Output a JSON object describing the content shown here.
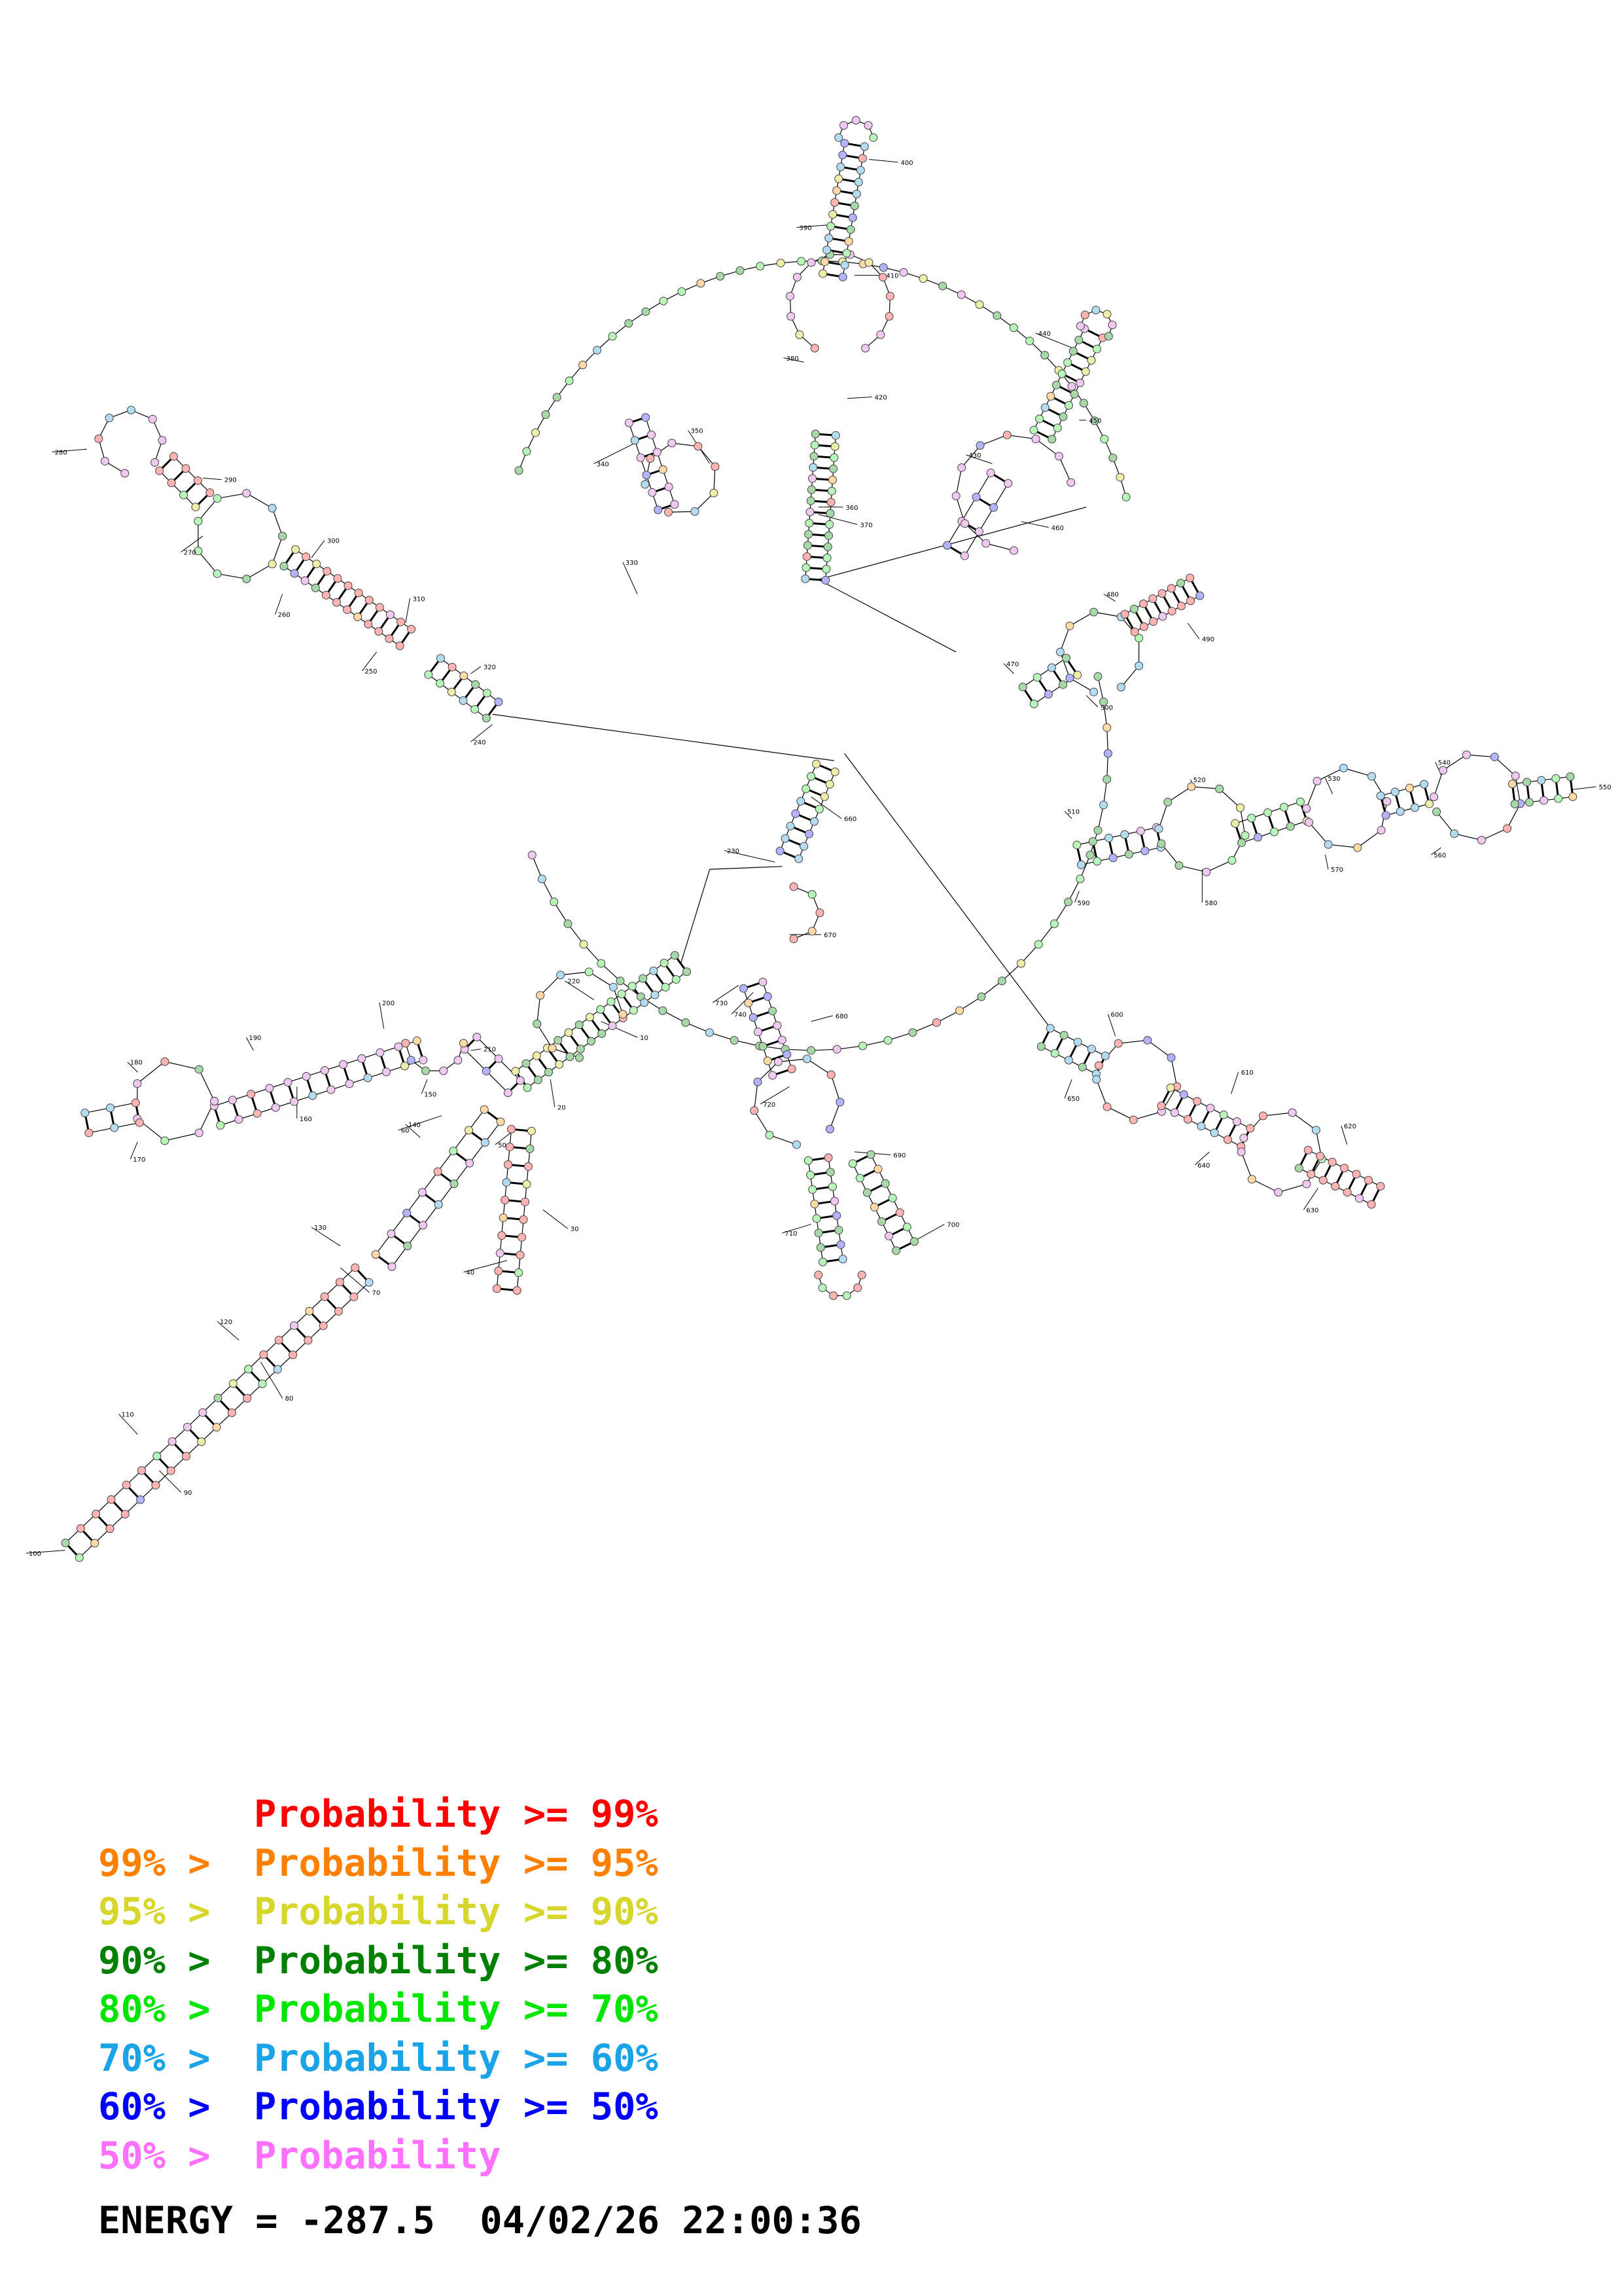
{
  "legend": [
    {
      "prefix": "",
      "label": "Probability",
      "suffix": ">= 99%",
      "color": "#ff0000"
    },
    {
      "prefix": "99% >",
      "label": "Probability",
      "suffix": ">= 95%",
      "color": "#ff8000"
    },
    {
      "prefix": "95% >",
      "label": "Probability",
      "suffix": ">= 90%",
      "color": "#d6d62c"
    },
    {
      "prefix": "90% >",
      "label": "Probability",
      "suffix": ">= 80%",
      "color": "#008000"
    },
    {
      "prefix": "80% >",
      "label": "Probability",
      "suffix": ">= 70%",
      "color": "#00e600"
    },
    {
      "prefix": "70% >",
      "label": "Probability",
      "suffix": ">= 60%",
      "color": "#1aa3e6"
    },
    {
      "prefix": "60% >",
      "label": "Probability",
      "suffix": ">= 50%",
      "color": "#0000ff"
    },
    {
      "prefix": "50% >",
      "label": "Probability",
      "suffix": "",
      "color": "#ff70ff"
    }
  ],
  "energy": {
    "label": "ENERGY =",
    "value": "-287.5",
    "timestamp": "04/02/26 22:00:36"
  },
  "numbering": [
    "10",
    "20",
    "30",
    "40",
    "50",
    "60",
    "70",
    "80",
    "90",
    "100",
    "110",
    "120",
    "130",
    "140",
    "150",
    "160",
    "170",
    "180",
    "190",
    "200",
    "210",
    "220",
    "230",
    "240",
    "250",
    "260",
    "270",
    "280",
    "290",
    "300",
    "310",
    "320",
    "330",
    "340",
    "350",
    "360",
    "370",
    "380",
    "390",
    "400",
    "410",
    "420",
    "430",
    "440",
    "450",
    "460",
    "470",
    "480",
    "490",
    "500",
    "510",
    "520",
    "530",
    "540",
    "550",
    "560",
    "570",
    "580",
    "590",
    "600",
    "610",
    "620",
    "630",
    "640",
    "650",
    "660",
    "670",
    "680",
    "690",
    "700",
    "710",
    "720",
    "730",
    "740",
    "750",
    "760",
    "770",
    "780",
    "790",
    "800",
    "810"
  ],
  "fill_palette": {
    "p99": "#ffb3b3",
    "p95": "#ffd9a6",
    "p90": "#eeeeaa",
    "p80": "#a8d8a8",
    "p70": "#b8f5b8",
    "p60": "#b3dcf2",
    "p50": "#b3b3ff",
    "plt50": "#f0c8f0"
  }
}
